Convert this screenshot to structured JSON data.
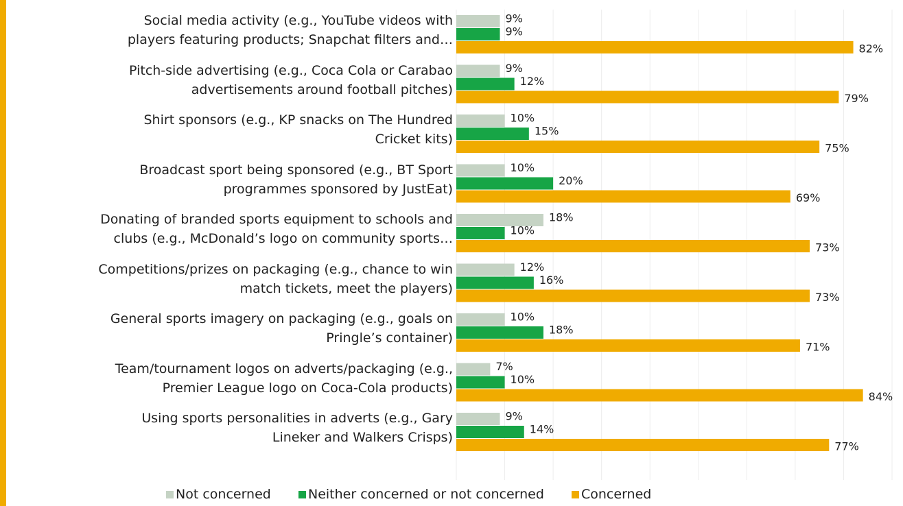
{
  "chart_data": {
    "type": "hbar",
    "categories": [
      "Social media activity (e.g., YouTube videos with\nplayers featuring products; Snapchat filters and…",
      "Pitch-side advertising (e.g., Coca Cola or Carabao\nadvertisements around football pitches)",
      "Shirt sponsors (e.g., KP snacks on The Hundred\nCricket kits)",
      "Broadcast sport being sponsored (e.g., BT Sport\nprogrammes sponsored by JustEat)",
      "Donating of branded sports equipment to schools and\nclubs (e.g., McDonald’s logo on community sports…",
      "Competitions/prizes on packaging (e.g., chance to win\nmatch tickets, meet the players)",
      "General sports imagery on packaging (e.g., goals on\nPringle’s container)",
      "Team/tournament logos on adverts/packaging (e.g.,\nPremier League logo on Coca-Cola products)",
      "Using sports personalities in adverts (e.g., Gary\nLineker and Walkers Crisps)"
    ],
    "series": [
      {
        "name": "Not concerned",
        "color": "#c5d3c4",
        "values": [
          9,
          9,
          10,
          10,
          18,
          12,
          10,
          7,
          9
        ],
        "value_labels": [
          "9%",
          "9%",
          "10%",
          "10%",
          "18%",
          "12%",
          "10%",
          "7%",
          "9%"
        ]
      },
      {
        "name": "Neither concerned or not concerned",
        "color": "#17a546",
        "values": [
          9,
          12,
          15,
          20,
          10,
          16,
          18,
          10,
          14
        ],
        "value_labels": [
          "9%",
          "12%",
          "15%",
          "20%",
          "10%",
          "16%",
          "18%",
          "10%",
          "14%"
        ]
      },
      {
        "name": "Concerned",
        "color": "#f0ab00",
        "values": [
          82,
          79,
          75,
          69,
          73,
          73,
          71,
          84,
          77
        ],
        "value_labels": [
          "82%",
          "79%",
          "75%",
          "69%",
          "73%",
          "73%",
          "71%",
          "84%",
          "77%"
        ]
      }
    ],
    "xlim": [
      0,
      90
    ],
    "xticks": [
      0,
      10,
      20,
      30,
      40,
      50,
      60,
      70,
      80,
      90
    ],
    "grid": true
  }
}
